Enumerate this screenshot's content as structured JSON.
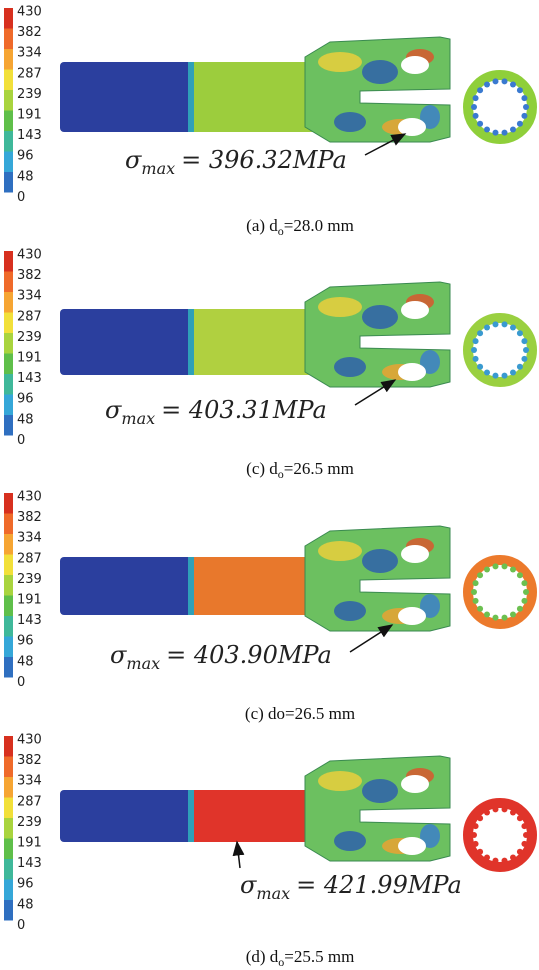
{
  "panels": [
    {
      "scale_labels": [
        "430",
        "382",
        "334",
        "287",
        "239",
        "191",
        "143",
        "96",
        "48",
        "0"
      ],
      "annotation": {
        "symbol": "σ",
        "subscript": "max",
        "value": "= 396.32MPa"
      },
      "caption": {
        "prefix": "(a) d",
        "subscript": "o",
        "suffix": "=28.0 mm"
      }
    },
    {
      "scale_labels": [
        "430",
        "382",
        "334",
        "287",
        "239",
        "191",
        "143",
        "96",
        "48",
        "0"
      ],
      "annotation": {
        "symbol": "σ",
        "subscript": "max",
        "value": "= 403.31MPa"
      },
      "caption": {
        "prefix": "(c) d",
        "subscript": "o",
        "suffix": "=26.5 mm"
      }
    },
    {
      "scale_labels": [
        "430",
        "382",
        "334",
        "287",
        "239",
        "191",
        "143",
        "96",
        "48",
        "0"
      ],
      "annotation": {
        "symbol": "σ",
        "subscript": "max",
        "value": "= 403.90MPa"
      },
      "caption": {
        "prefix": "(c) do=26.5 mm"
      }
    },
    {
      "scale_labels": [
        "430",
        "382",
        "334",
        "287",
        "239",
        "191",
        "143",
        "96",
        "48",
        "0"
      ],
      "annotation": {
        "symbol": "σ",
        "subscript": "max",
        "value": "= 421.99MPa"
      },
      "caption": {
        "prefix": "(d) d",
        "subscript": "o",
        "suffix": "=25.5 mm"
      }
    }
  ]
}
